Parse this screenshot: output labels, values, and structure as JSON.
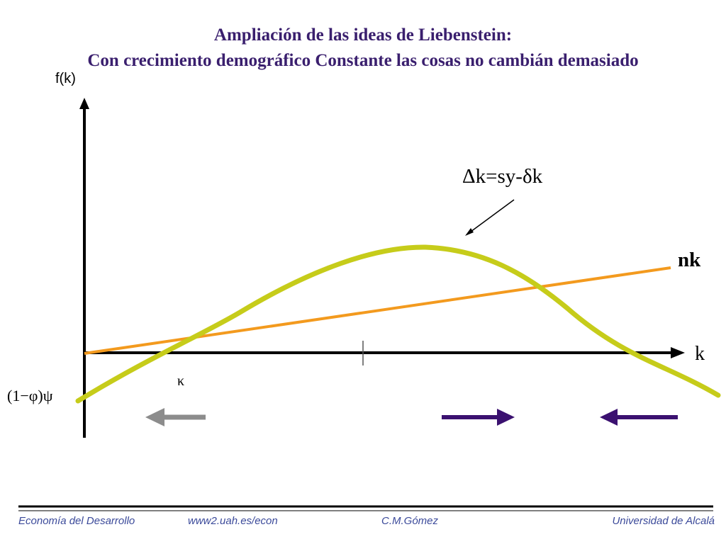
{
  "title": {
    "line1": "Ampliación de las ideas de Liebenstein:",
    "line2": "Con crecimiento demográfico Constante las cosas no cambián demasiado"
  },
  "axes": {
    "y_label": "f(k)",
    "x_label": "k",
    "tick_label": "κ",
    "intercept_label": "(1−φ)ψ"
  },
  "curves": {
    "curve_label": "Δk=sy-δk",
    "line_label": "nk",
    "curve_color": "#c6cc1a",
    "line_color": "#f39a1e"
  },
  "arrows": {
    "gray_color": "#8c8c8c",
    "purple_color": "#3b1170"
  },
  "footer": {
    "left": "Economía del Desarrollo",
    "url": "www2.uah.es/econ",
    "author": "C.M.Gómez",
    "university": "Universidad de Alcalá"
  }
}
